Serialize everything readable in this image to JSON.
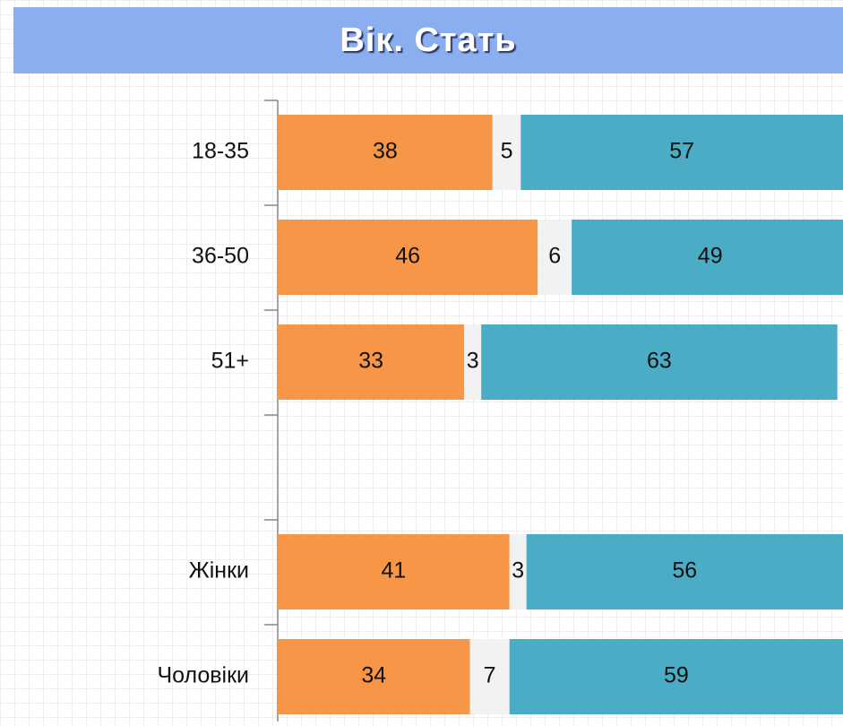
{
  "chart_data": {
    "type": "stacked-barh",
    "title": "Вік. Стать",
    "categories": [
      "18-35",
      "36-50",
      "51+",
      null,
      "Жінки",
      "Чоловіки"
    ],
    "series": [
      {
        "color": "#f79646",
        "values": [
          38,
          46,
          33,
          null,
          41,
          34
        ]
      },
      {
        "color": "#f2f2f2",
        "values": [
          5,
          6,
          3,
          null,
          3,
          7
        ]
      },
      {
        "color": "#4bacc6",
        "values": [
          57,
          49,
          63,
          null,
          56,
          59
        ]
      }
    ],
    "xlim": [
      0,
      100
    ]
  }
}
